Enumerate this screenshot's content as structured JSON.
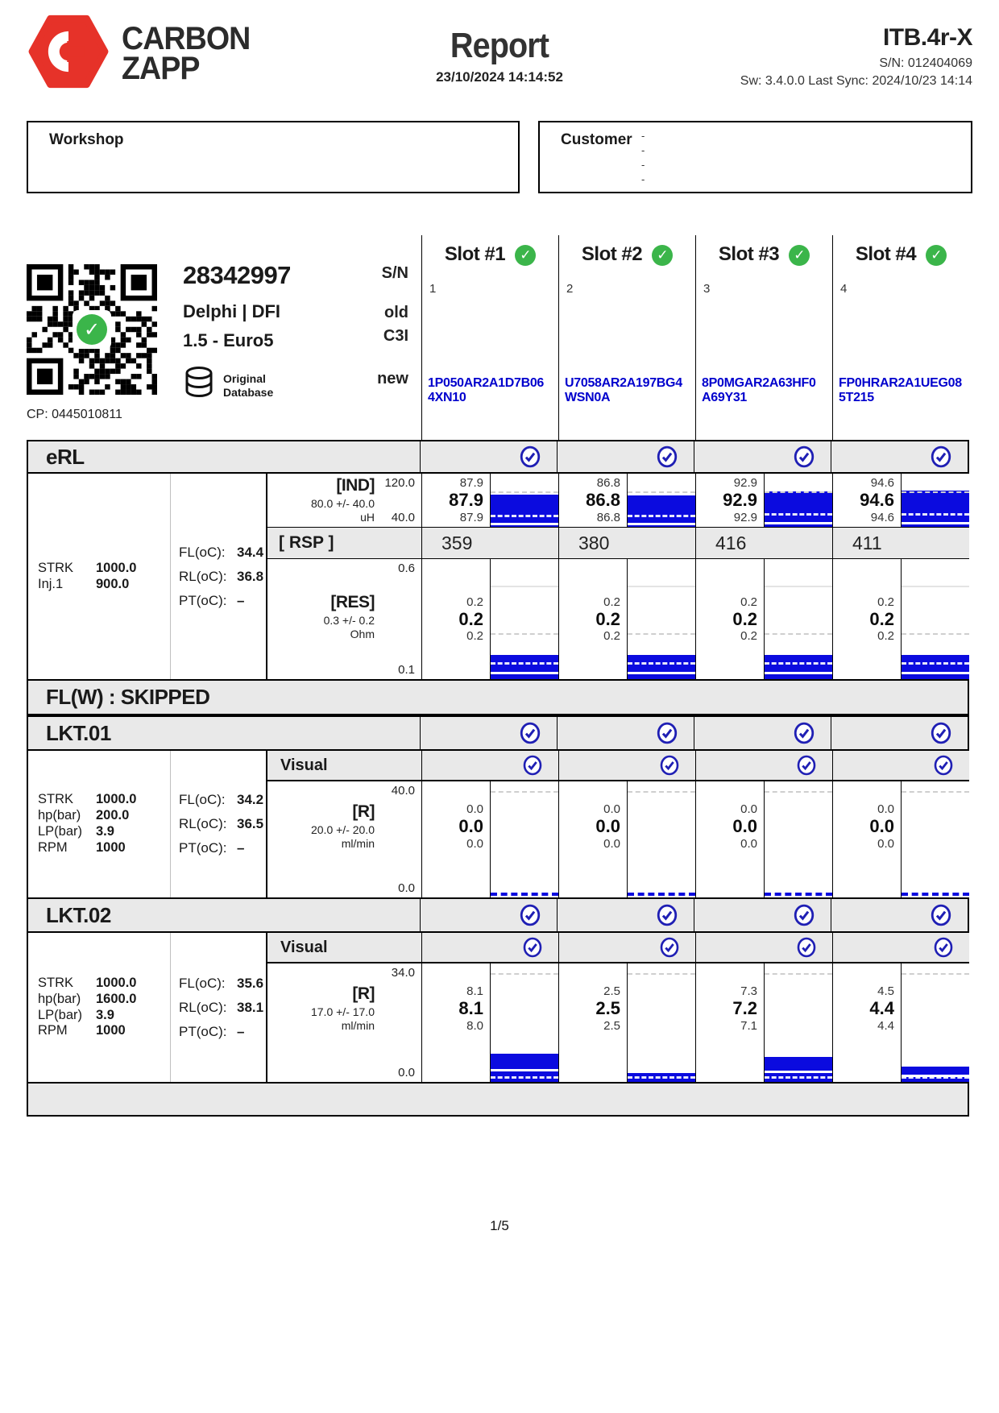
{
  "page": {
    "brand_line1": "CARBON",
    "brand_line2": "ZAPP",
    "title": "Report",
    "datetime": "23/10/2024 14:14:52",
    "device": "ITB.4r-X",
    "device_sn": "S/N: 012404069",
    "sw_line": "Sw: 3.4.0.0 Last Sync: 2024/10/23 14:14",
    "page_number": "1/5"
  },
  "colors": {
    "logo_red": "#e63229",
    "bar_blue": "#0b0bdf",
    "code_blue": "#0000cd",
    "check_blue": "#1f1fb4",
    "pass_green": "#3bb54a",
    "section_gray": "#e9e9e9"
  },
  "icons": {
    "slot_pass": "green-check-icon",
    "test_pass": "blue-circled-check-icon",
    "qr": "qr-code",
    "database": "database-cylinder-icon",
    "check_glyph": "✓"
  },
  "workshop": {
    "label": "Workshop"
  },
  "customer": {
    "label": "Customer",
    "lines": [
      "-",
      "-",
      "-",
      "-"
    ]
  },
  "injector": {
    "code": "28342997",
    "make": "Delphi | DFI",
    "spec": "1.5 - Euro5",
    "db_line1": "Original",
    "db_line2": "Database",
    "cp": "CP: 0445010811",
    "sn_label": "S/N",
    "old_label": "old",
    "old_value": "C3I",
    "new_label": "new"
  },
  "slots": [
    {
      "title": "Slot #1",
      "number": "1",
      "code_line1": "1P050AR2A1D7B06",
      "code_line2": "4XN10"
    },
    {
      "title": "Slot #2",
      "number": "2",
      "code_line1": "U7058AR2A197BG4",
      "code_line2": "WSN0A"
    },
    {
      "title": "Slot #3",
      "number": "3",
      "code_line1": "8P0MGAR2A63HF0",
      "code_line2": "A69Y31"
    },
    {
      "title": "Slot #4",
      "number": "4",
      "code_line1": "FP0HRAR2A1UEG08",
      "code_line2": "5T215"
    }
  ],
  "erl": {
    "title": "eRL",
    "params": [
      {
        "k": "STRK",
        "v": "1000.0"
      },
      {
        "k": "Inj.1",
        "v": "900.0"
      }
    ],
    "temps": [
      {
        "k": "FL(oC):",
        "v": "34.4"
      },
      {
        "k": "RL(oC):",
        "v": "36.8"
      },
      {
        "k": "PT(oC):",
        "v": "–"
      }
    ],
    "ind": {
      "name": "[IND]",
      "nominal": "80.0 +/- 40.0",
      "unit": "uH",
      "axis_top": "120.0",
      "axis_bottom": "40.0",
      "scale": [
        40,
        120
      ],
      "style": "ind",
      "slots": [
        {
          "max": "87.9",
          "avg": "87.9",
          "min": "87.9",
          "value": 87.9
        },
        {
          "max": "86.8",
          "avg": "86.8",
          "min": "86.8",
          "value": 86.8
        },
        {
          "max": "92.9",
          "avg": "92.9",
          "min": "92.9",
          "value": 92.9
        },
        {
          "max": "94.6",
          "avg": "94.6",
          "min": "94.6",
          "value": 94.6
        }
      ]
    },
    "rsp": {
      "name": "[ RSP ]",
      "values": [
        "359",
        "380",
        "416",
        "411"
      ]
    },
    "res": {
      "name": "[RES]",
      "nominal": "0.3 +/- 0.2",
      "unit": "Ohm",
      "axis_top": "0.6",
      "axis_bottom": "0.1",
      "scale": [
        0.1,
        0.6
      ],
      "style": "res",
      "slots": [
        {
          "max": "0.2",
          "avg": "0.2",
          "min": "0.2",
          "value": 0.2
        },
        {
          "max": "0.2",
          "avg": "0.2",
          "min": "0.2",
          "value": 0.2
        },
        {
          "max": "0.2",
          "avg": "0.2",
          "min": "0.2",
          "value": 0.2
        },
        {
          "max": "0.2",
          "avg": "0.2",
          "min": "0.2",
          "value": 0.2
        }
      ]
    }
  },
  "flw": {
    "title": "FL(W) : SKIPPED"
  },
  "lkt01": {
    "title": "LKT.01",
    "visual_label": "Visual",
    "params": [
      {
        "k": "STRK",
        "v": "1000.0"
      },
      {
        "k": "hp(bar)",
        "v": "200.0"
      },
      {
        "k": "LP(bar)",
        "v": "3.9"
      },
      {
        "k": "RPM",
        "v": "1000"
      }
    ],
    "temps": [
      {
        "k": "FL(oC):",
        "v": "34.2"
      },
      {
        "k": "RL(oC):",
        "v": "36.5"
      },
      {
        "k": "PT(oC):",
        "v": "–"
      }
    ],
    "r": {
      "name": "[R]",
      "nominal": "20.0 +/- 20.0",
      "unit": "ml/min",
      "axis_top": "40.0",
      "axis_bottom": "0.0",
      "scale": [
        0,
        40
      ],
      "style": "lkt",
      "slots": [
        {
          "max": "0.0",
          "avg": "0.0",
          "min": "0.0",
          "value": 0
        },
        {
          "max": "0.0",
          "avg": "0.0",
          "min": "0.0",
          "value": 0
        },
        {
          "max": "0.0",
          "avg": "0.0",
          "min": "0.0",
          "value": 0
        },
        {
          "max": "0.0",
          "avg": "0.0",
          "min": "0.0",
          "value": 0
        }
      ]
    }
  },
  "lkt02": {
    "title": "LKT.02",
    "visual_label": "Visual",
    "params": [
      {
        "k": "STRK",
        "v": "1000.0"
      },
      {
        "k": "hp(bar)",
        "v": "1600.0"
      },
      {
        "k": "LP(bar)",
        "v": "3.9"
      },
      {
        "k": "RPM",
        "v": "1000"
      }
    ],
    "temps": [
      {
        "k": "FL(oC):",
        "v": "35.6"
      },
      {
        "k": "RL(oC):",
        "v": "38.1"
      },
      {
        "k": "PT(oC):",
        "v": "–"
      }
    ],
    "r": {
      "name": "[R]",
      "nominal": "17.0 +/- 17.0",
      "unit": "ml/min",
      "axis_top": "34.0",
      "axis_bottom": "0.0",
      "scale": [
        0,
        34
      ],
      "style": "lkt",
      "slots": [
        {
          "max": "8.1",
          "avg": "8.1",
          "min": "8.0",
          "value": 8.1
        },
        {
          "max": "2.5",
          "avg": "2.5",
          "min": "2.5",
          "value": 2.5
        },
        {
          "max": "7.3",
          "avg": "7.2",
          "min": "7.1",
          "value": 7.2
        },
        {
          "max": "4.5",
          "avg": "4.4",
          "min": "4.4",
          "value": 4.4
        }
      ]
    }
  }
}
